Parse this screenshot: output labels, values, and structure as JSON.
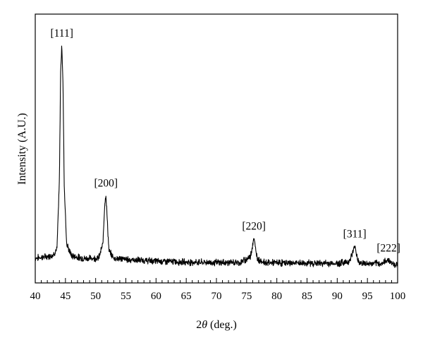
{
  "chart_data": {
    "type": "line",
    "title": "",
    "xlabel": "2θ (deg.)",
    "xlabel_parts": {
      "var": "θ",
      "prefix": "2",
      "suffix": " (deg.)"
    },
    "ylabel": "Intensity (A.U.)",
    "xlim": [
      40,
      100
    ],
    "ylim": [
      0,
      1
    ],
    "x_ticks": [
      40,
      45,
      50,
      55,
      60,
      65,
      70,
      75,
      80,
      85,
      90,
      95,
      100
    ],
    "y_ticks_shown": false,
    "grid": false,
    "legend": "none",
    "series": [
      {
        "x": [
          40.0,
          42.0,
          43.0,
          43.6,
          44.0,
          44.2,
          44.4,
          44.6,
          44.8,
          45.2,
          46.0,
          48.0,
          50.5,
          51.2,
          51.5,
          51.7,
          51.9,
          52.2,
          53.0,
          56.0,
          60.0,
          65.0,
          70.0,
          74.0,
          75.6,
          76.0,
          76.2,
          76.4,
          76.8,
          78.0,
          82.0,
          86.0,
          90.0,
          92.0,
          92.6,
          92.9,
          93.2,
          93.6,
          95.0,
          97.5,
          98.2,
          98.5,
          98.8,
          99.5,
          100.0
        ],
        "y": [
          0.06,
          0.066,
          0.075,
          0.1,
          0.4,
          0.88,
          1.0,
          0.82,
          0.38,
          0.12,
          0.07,
          0.058,
          0.06,
          0.12,
          0.3,
          0.34,
          0.24,
          0.09,
          0.06,
          0.052,
          0.046,
          0.042,
          0.04,
          0.04,
          0.065,
          0.12,
          0.15,
          0.11,
          0.055,
          0.04,
          0.038,
          0.037,
          0.036,
          0.045,
          0.085,
          0.116,
          0.075,
          0.04,
          0.034,
          0.036,
          0.05,
          0.054,
          0.042,
          0.032,
          0.03
        ]
      }
    ],
    "annotations": [
      {
        "text": "[111]",
        "x": 44.4
      },
      {
        "text": "[200]",
        "x": 51.7
      },
      {
        "text": "[220]",
        "x": 76.2
      },
      {
        "text": "[311]",
        "x": 92.9
      },
      {
        "text": "[222]",
        "x": 98.5
      }
    ]
  }
}
